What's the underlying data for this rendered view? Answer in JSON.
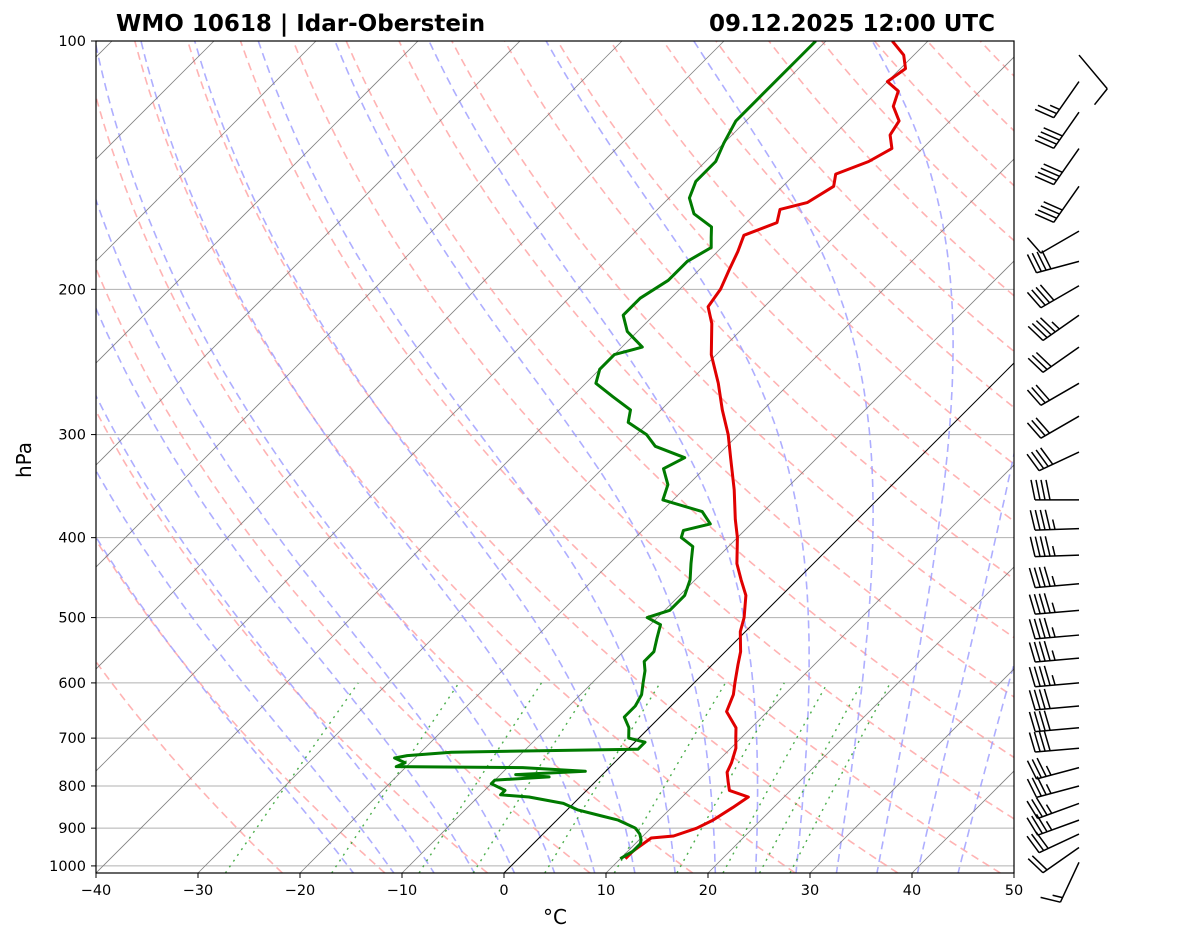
{
  "header": {
    "station": "WMO 10618 | Idar-Oberstein",
    "datetime": "09.12.2025 12:00 UTC"
  },
  "chart_data": {
    "type": "line",
    "subtype": "skew-t log-p sounding",
    "xlabel": "°C",
    "ylabel": "hPa",
    "x_range": [
      -40,
      50
    ],
    "p_range": [
      1020,
      100
    ],
    "x_ticks": [
      -40,
      -30,
      -20,
      -10,
      0,
      10,
      20,
      30,
      40,
      50
    ],
    "x_tick_labels": [
      "−40",
      "−30",
      "−20",
      "−10",
      "0",
      "10",
      "20",
      "30",
      "40",
      "50"
    ],
    "p_ticks": [
      1000,
      900,
      800,
      700,
      600,
      500,
      400,
      300,
      200,
      100
    ],
    "p_tick_labels": [
      "1000",
      "900",
      "800",
      "700",
      "600",
      "500",
      "400",
      "300",
      "200",
      "100"
    ],
    "grid": true,
    "reference_lines": {
      "dry_adiabats": "dashed light red",
      "moist_adiabats": "dashed light blue",
      "mixing_ratio_lines": "dotted green",
      "isotherms": "thin gray, skewed",
      "zero_isotherm": "solid black"
    },
    "colors": {
      "temperature": "#e00000",
      "dewpoint": "#007a00",
      "dry_adiabat": "#ff9a9a",
      "moist_adiabat": "#9a9aff",
      "mixing_ratio": "#2ca02c",
      "isotherm": "#808080",
      "grid": "#b0b0b0"
    },
    "series": [
      {
        "key": "temperature",
        "points": [
          [
            980,
            10.5
          ],
          [
            960,
            10.5
          ],
          [
            925,
            11
          ],
          [
            920,
            13
          ],
          [
            900,
            14.5
          ],
          [
            880,
            15.3
          ],
          [
            850,
            16
          ],
          [
            825,
            16.5
          ],
          [
            810,
            14
          ],
          [
            790,
            13
          ],
          [
            770,
            12
          ],
          [
            750,
            11.5
          ],
          [
            720,
            10.5
          ],
          [
            700,
            9.5
          ],
          [
            680,
            8.5
          ],
          [
            650,
            6
          ],
          [
            620,
            5
          ],
          [
            600,
            4
          ],
          [
            570,
            2.5
          ],
          [
            550,
            1.5
          ],
          [
            520,
            -0.5
          ],
          [
            500,
            -1.5
          ],
          [
            470,
            -3.5
          ],
          [
            450,
            -5.5
          ],
          [
            430,
            -7.5
          ],
          [
            400,
            -10
          ],
          [
            380,
            -12
          ],
          [
            350,
            -15
          ],
          [
            320,
            -18.5
          ],
          [
            300,
            -21
          ],
          [
            280,
            -24
          ],
          [
            260,
            -27
          ],
          [
            240,
            -30.5
          ],
          [
            220,
            -33.5
          ],
          [
            210,
            -35.5
          ],
          [
            200,
            -36
          ],
          [
            190,
            -37
          ],
          [
            180,
            -38
          ],
          [
            172,
            -39
          ],
          [
            166,
            -37
          ],
          [
            160,
            -38
          ],
          [
            157,
            -36
          ],
          [
            150,
            -35
          ],
          [
            145,
            -36
          ],
          [
            140,
            -34
          ],
          [
            135,
            -33
          ],
          [
            130,
            -34.5
          ],
          [
            125,
            -35
          ],
          [
            120,
            -37
          ],
          [
            115,
            -38
          ],
          [
            112,
            -40
          ],
          [
            108,
            -39.5
          ],
          [
            104,
            -41
          ],
          [
            100,
            -43.5
          ]
        ]
      },
      {
        "key": "dewpoint",
        "points": [
          [
            980,
            10
          ],
          [
            960,
            10.5
          ],
          [
            940,
            10.5
          ],
          [
            930,
            10.2
          ],
          [
            915,
            9.5
          ],
          [
            900,
            8.5
          ],
          [
            880,
            6
          ],
          [
            870,
            4
          ],
          [
            855,
            1
          ],
          [
            840,
            -1
          ],
          [
            825,
            -5
          ],
          [
            820,
            -8
          ],
          [
            810,
            -8
          ],
          [
            795,
            -10
          ],
          [
            787,
            -10
          ],
          [
            780,
            -5
          ],
          [
            775,
            -8.5
          ],
          [
            768,
            -2
          ],
          [
            760,
            -8.5
          ],
          [
            758,
            -21
          ],
          [
            750,
            -20.5
          ],
          [
            740,
            -22
          ],
          [
            735,
            -21
          ],
          [
            728,
            -17
          ],
          [
            722,
            1
          ],
          [
            708,
            1
          ],
          [
            700,
            -1
          ],
          [
            680,
            -2
          ],
          [
            660,
            -3.5
          ],
          [
            640,
            -3.5
          ],
          [
            620,
            -4
          ],
          [
            600,
            -5
          ],
          [
            580,
            -6
          ],
          [
            565,
            -7
          ],
          [
            550,
            -7
          ],
          [
            530,
            -8
          ],
          [
            510,
            -9
          ],
          [
            500,
            -11
          ],
          [
            490,
            -9.5
          ],
          [
            470,
            -9.5
          ],
          [
            450,
            -10.5
          ],
          [
            430,
            -12
          ],
          [
            410,
            -13.5
          ],
          [
            400,
            -15.5
          ],
          [
            392,
            -16
          ],
          [
            385,
            -14
          ],
          [
            372,
            -16
          ],
          [
            360,
            -21
          ],
          [
            345,
            -22
          ],
          [
            330,
            -24
          ],
          [
            320,
            -23
          ],
          [
            310,
            -27
          ],
          [
            300,
            -29
          ],
          [
            290,
            -32
          ],
          [
            280,
            -33
          ],
          [
            270,
            -36
          ],
          [
            260,
            -39
          ],
          [
            250,
            -40
          ],
          [
            240,
            -40
          ],
          [
            235,
            -38
          ],
          [
            225,
            -41
          ],
          [
            215,
            -43
          ],
          [
            205,
            -43
          ],
          [
            195,
            -42
          ],
          [
            185,
            -42
          ],
          [
            178,
            -41
          ],
          [
            173,
            -42
          ],
          [
            168,
            -43
          ],
          [
            162,
            -46
          ],
          [
            155,
            -48
          ],
          [
            148,
            -49
          ],
          [
            140,
            -49
          ],
          [
            133,
            -50
          ],
          [
            125,
            -51
          ],
          [
            118,
            -51
          ],
          [
            110,
            -51
          ],
          [
            105,
            -51
          ],
          [
            100,
            -51
          ]
        ]
      }
    ],
    "wind_barbs": [
      {
        "p": 990,
        "dir": 205,
        "kt": 15
      },
      {
        "p": 950,
        "dir": 235,
        "kt": 20
      },
      {
        "p": 915,
        "dir": 245,
        "kt": 30
      },
      {
        "p": 880,
        "dir": 250,
        "kt": 35
      },
      {
        "p": 840,
        "dir": 250,
        "kt": 35
      },
      {
        "p": 800,
        "dir": 255,
        "kt": 35
      },
      {
        "p": 760,
        "dir": 255,
        "kt": 35
      },
      {
        "p": 720,
        "dir": 265,
        "kt": 40
      },
      {
        "p": 680,
        "dir": 265,
        "kt": 40
      },
      {
        "p": 640,
        "dir": 265,
        "kt": 40
      },
      {
        "p": 600,
        "dir": 265,
        "kt": 45
      },
      {
        "p": 560,
        "dir": 265,
        "kt": 45
      },
      {
        "p": 525,
        "dir": 265,
        "kt": 45
      },
      {
        "p": 490,
        "dir": 265,
        "kt": 45
      },
      {
        "p": 455,
        "dir": 265,
        "kt": 45
      },
      {
        "p": 420,
        "dir": 268,
        "kt": 45
      },
      {
        "p": 390,
        "dir": 268,
        "kt": 45
      },
      {
        "p": 360,
        "dir": 270,
        "kt": 40
      },
      {
        "p": 315,
        "dir": 245,
        "kt": 40
      },
      {
        "p": 285,
        "dir": 240,
        "kt": 30
      },
      {
        "p": 260,
        "dir": 240,
        "kt": 30
      },
      {
        "p": 235,
        "dir": 235,
        "kt": 30
      },
      {
        "p": 215,
        "dir": 235,
        "kt": 45
      },
      {
        "p": 198,
        "dir": 240,
        "kt": 40
      },
      {
        "p": 185,
        "dir": 255,
        "kt": 40
      },
      {
        "p": 170,
        "dir": 240,
        "kt": 10
      },
      {
        "p": 150,
        "dir": 215,
        "kt": 40
      },
      {
        "p": 135,
        "dir": 215,
        "kt": 40
      },
      {
        "p": 122,
        "dir": 215,
        "kt": 40
      },
      {
        "p": 112,
        "dir": 215,
        "kt": 25
      },
      {
        "p": 104,
        "dir": 140,
        "kt": 10
      }
    ]
  }
}
